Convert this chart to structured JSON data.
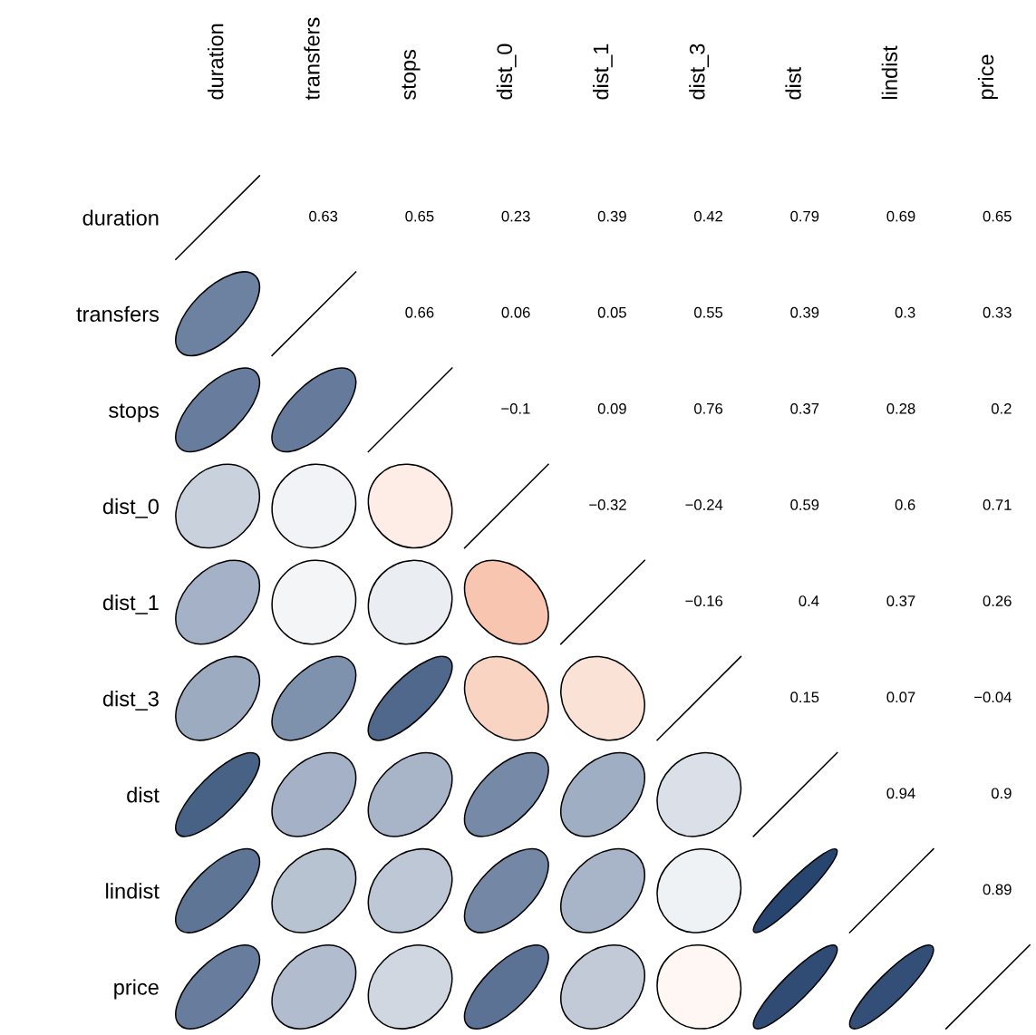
{
  "chart_data": {
    "type": "heatmap",
    "categories": [
      "duration",
      "transfers",
      "stops",
      "dist_0",
      "dist_1",
      "dist_3",
      "dist",
      "lindist",
      "price"
    ],
    "y_categories": [
      "duration",
      "transfers",
      "stops",
      "dist_0",
      "dist_1",
      "dist_3",
      "dist",
      "lindist",
      "price"
    ],
    "cells": [
      [
        null,
        0.63,
        0.65,
        0.23,
        0.39,
        0.42,
        0.79,
        0.69,
        0.65
      ],
      [
        null,
        null,
        0.66,
        0.06,
        0.05,
        0.55,
        0.39,
        0.3,
        0.33
      ],
      [
        null,
        null,
        null,
        -0.1,
        0.09,
        0.76,
        0.37,
        0.28,
        0.2
      ],
      [
        null,
        null,
        null,
        null,
        -0.32,
        -0.24,
        0.59,
        0.6,
        0.71
      ],
      [
        null,
        null,
        null,
        null,
        null,
        -0.16,
        0.4,
        0.37,
        0.26
      ],
      [
        null,
        null,
        null,
        null,
        null,
        null,
        0.15,
        0.07,
        -0.04
      ],
      [
        null,
        null,
        null,
        null,
        null,
        null,
        null,
        0.94,
        0.9
      ],
      [
        null,
        null,
        null,
        null,
        null,
        null,
        null,
        null,
        0.89
      ],
      [
        null,
        null,
        null,
        null,
        null,
        null,
        null,
        null,
        null
      ]
    ],
    "cell_labels": [
      [
        null,
        "0.63",
        "0.65",
        "0.23",
        "0.39",
        "0.42",
        "0.79",
        "0.69",
        "0.65"
      ],
      [
        null,
        null,
        "0.66",
        "0.06",
        "0.05",
        "0.55",
        "0.39",
        "0.3",
        "0.33"
      ],
      [
        null,
        null,
        null,
        "−0.1",
        "0.09",
        "0.76",
        "0.37",
        "0.28",
        "0.2"
      ],
      [
        null,
        null,
        null,
        null,
        "−0.32",
        "−0.24",
        "0.59",
        "0.6",
        "0.71"
      ],
      [
        null,
        null,
        null,
        null,
        null,
        "−0.16",
        "0.4",
        "0.37",
        "0.26"
      ],
      [
        null,
        null,
        null,
        null,
        null,
        null,
        "0.15",
        "0.07",
        "−0.04"
      ],
      [
        null,
        null,
        null,
        null,
        null,
        null,
        null,
        "0.94",
        "0.9"
      ],
      [
        null,
        null,
        null,
        null,
        null,
        null,
        null,
        null,
        "0.89"
      ],
      [
        null,
        null,
        null,
        null,
        null,
        null,
        null,
        null,
        null
      ]
    ]
  }
}
